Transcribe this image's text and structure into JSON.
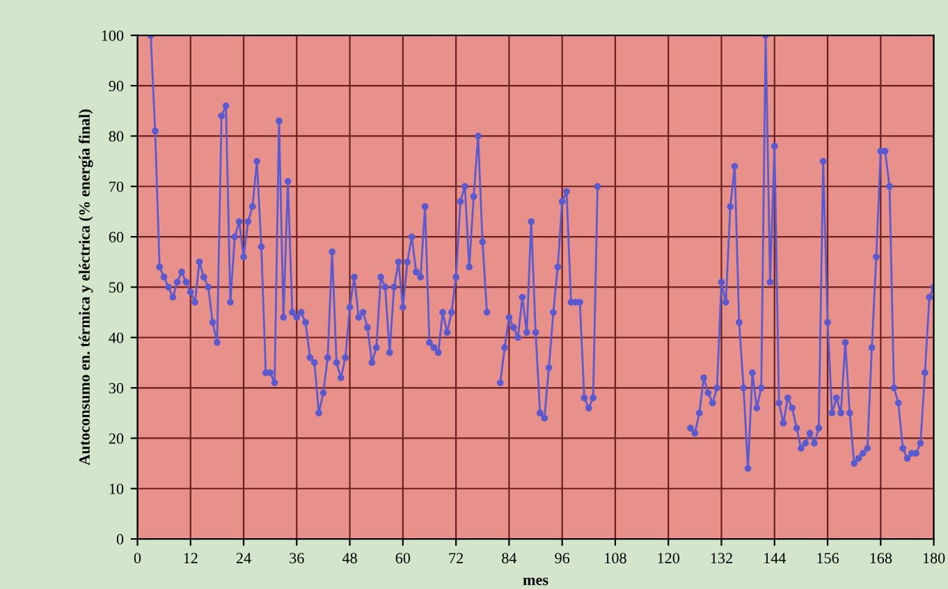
{
  "chart_data": {
    "type": "line",
    "xlabel": "mes",
    "ylabel": "Autoconsumo en. térmica y eléctrica (% energía final)",
    "x": [
      3,
      4,
      5,
      6,
      7,
      8,
      9,
      10,
      11,
      12,
      13,
      14,
      15,
      16,
      17,
      18,
      19,
      20,
      21,
      22,
      23,
      24,
      25,
      26,
      27,
      28,
      29,
      30,
      31,
      32,
      33,
      34,
      35,
      36,
      37,
      38,
      39,
      40,
      41,
      42,
      43,
      44,
      45,
      46,
      47,
      48,
      49,
      50,
      51,
      52,
      53,
      54,
      55,
      56,
      57,
      58,
      59,
      60,
      61,
      62,
      63,
      64,
      65,
      66,
      67,
      68,
      69,
      70,
      71,
      72,
      73,
      74,
      75,
      76,
      77,
      78,
      79,
      80,
      81,
      82,
      83,
      84,
      85,
      86,
      87,
      88,
      89,
      90,
      91,
      92,
      93,
      94,
      95,
      96,
      97,
      98,
      99,
      100,
      101,
      102,
      103,
      104,
      105,
      124,
      125,
      126,
      127,
      128,
      129,
      130,
      131,
      132,
      133,
      134,
      135,
      136,
      137,
      138,
      139,
      140,
      141,
      142,
      143,
      144,
      145,
      146,
      147,
      148,
      149,
      150,
      151,
      152,
      153,
      154,
      155,
      156,
      157,
      158,
      159,
      160,
      161,
      162,
      163,
      164,
      165,
      166,
      167,
      168,
      169,
      170,
      171,
      172,
      173,
      174,
      175,
      176,
      177,
      178,
      179,
      180
    ],
    "series": [
      {
        "color": "#5a5ad0",
        "values": [
          100,
          81,
          54,
          52,
          50,
          48,
          51,
          53,
          51,
          49,
          47,
          55,
          52,
          50,
          43,
          39,
          84,
          86,
          47,
          60,
          63,
          56,
          63,
          66,
          75,
          58,
          33,
          33,
          31,
          83,
          44,
          71,
          45,
          44,
          45,
          43,
          36,
          35,
          25,
          29,
          36,
          57,
          35,
          32,
          36,
          46,
          52,
          44,
          45,
          42,
          35,
          38,
          52,
          50,
          37,
          50,
          55,
          46,
          55,
          60,
          53,
          52,
          66,
          39,
          38,
          37,
          45,
          41,
          45,
          52,
          67,
          70,
          54,
          68,
          80,
          59,
          45,
          null,
          null,
          31,
          38,
          44,
          42,
          40,
          48,
          41,
          63,
          41,
          25,
          24,
          34,
          45,
          54,
          67,
          69,
          47,
          47,
          47,
          28,
          26,
          28,
          70,
          null,
          null,
          22,
          21,
          25,
          32,
          29,
          27,
          30,
          51,
          47,
          66,
          74,
          43,
          30,
          14,
          33,
          26,
          30,
          100,
          51,
          78,
          27,
          23,
          28,
          26,
          22,
          18,
          19,
          21,
          19,
          22,
          75,
          43,
          25,
          28,
          25,
          39,
          25,
          15,
          16,
          17,
          18,
          38,
          56,
          77,
          77,
          70,
          30,
          27,
          18,
          16,
          17,
          17,
          19,
          33,
          48,
          50
        ]
      }
    ],
    "xlim": [
      0,
      180
    ],
    "xticks": [
      0,
      12,
      24,
      36,
      48,
      60,
      72,
      84,
      96,
      108,
      120,
      132,
      144,
      156,
      168,
      180
    ],
    "ylim": [
      0,
      100
    ],
    "yticks": [
      0,
      10,
      20,
      30,
      40,
      50,
      60,
      70,
      80,
      90,
      100
    ],
    "grid": true,
    "marker": "circle",
    "line_style": "solid"
  }
}
